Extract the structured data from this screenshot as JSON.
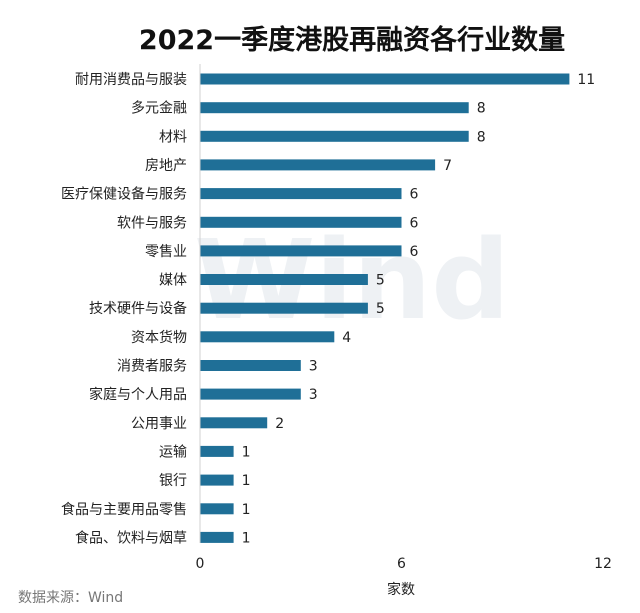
{
  "chart_data": {
    "type": "bar",
    "orientation": "horizontal",
    "title": "2022一季度港股再融资各行业数量",
    "xlabel": "家数",
    "ylabel": "",
    "xlim": [
      0,
      12
    ],
    "xticks": [
      0,
      6,
      12
    ],
    "grid": false,
    "legend": "none",
    "categories": [
      "耐用消费品与服装",
      "多元金融",
      "材料",
      "房地产",
      "医疗保健设备与服务",
      "软件与服务",
      "零售业",
      "媒体",
      "技术硬件与设备",
      "资本货物",
      "消费者服务",
      "家庭与个人用品",
      "公用事业",
      "运输",
      "银行",
      "食品与主要用品零售",
      "食品、饮料与烟草"
    ],
    "values": [
      11,
      8,
      8,
      7,
      6,
      6,
      6,
      5,
      5,
      4,
      3,
      3,
      2,
      1,
      1,
      1,
      1
    ],
    "bar_color": "#1f6f97",
    "source": "数据来源：Wind",
    "watermark": "Wind"
  }
}
